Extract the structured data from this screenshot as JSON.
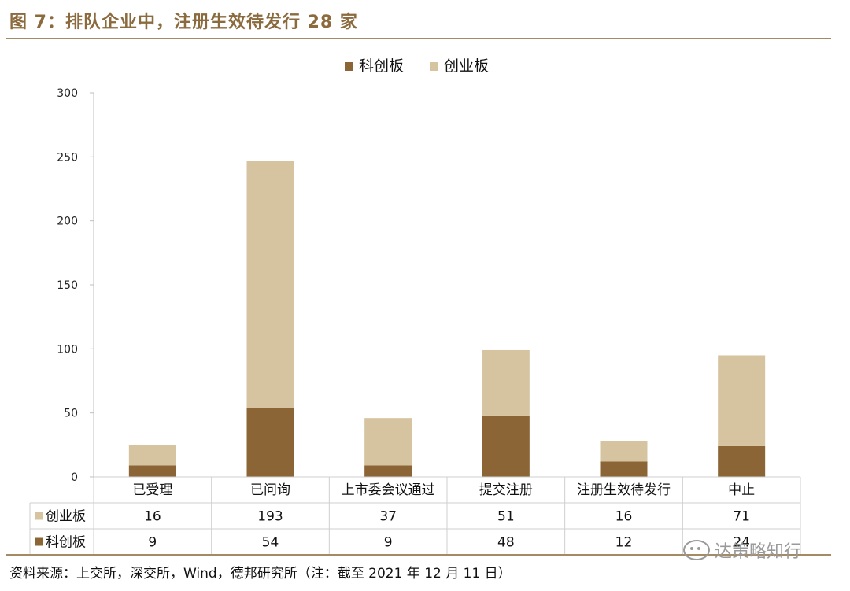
{
  "title": "图 7：排队企业中，注册生效待发行 28 家",
  "source": "资料来源：上交所，深交所，Wind，德邦研究所（注：截至 2021 年 12 月 11 日）",
  "watermark": "达策略知行",
  "colors": {
    "科创板": "#8b6535",
    "创业板": "#d6c4a0",
    "accent": "#a58a66"
  },
  "chart_data": {
    "type": "bar",
    "stacked": true,
    "categories": [
      "已受理",
      "已问询",
      "上市委会议通过",
      "提交注册",
      "注册生效待发行",
      "中止"
    ],
    "series": [
      {
        "name": "科创板",
        "values": [
          9,
          54,
          9,
          48,
          12,
          24
        ]
      },
      {
        "name": "创业板",
        "values": [
          16,
          193,
          37,
          51,
          16,
          71
        ]
      }
    ],
    "ylim": [
      0,
      300
    ],
    "yticks": [
      "0",
      "50",
      "100",
      "150",
      "200",
      "250",
      "300"
    ],
    "legend": "top-center",
    "data_table": true,
    "table_row_order": [
      "创业板",
      "科创板"
    ]
  }
}
